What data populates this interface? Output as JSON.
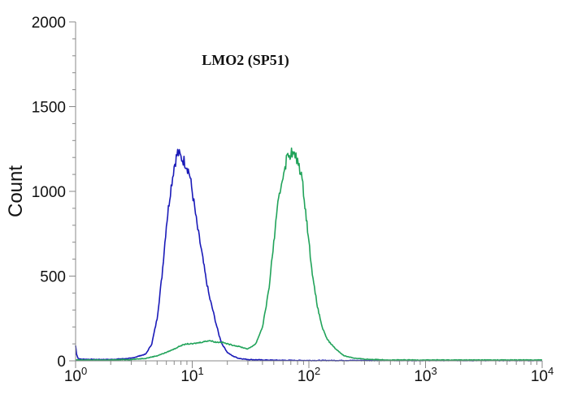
{
  "chart_data": {
    "type": "line",
    "title": "LMO2 (SP51)",
    "xlabel": "",
    "ylabel": "Count",
    "x_scale": "log",
    "xlim": [
      1,
      10000
    ],
    "ylim": [
      0,
      2000
    ],
    "grid": false,
    "y_ticks": [
      {
        "value": 0,
        "label": "0"
      },
      {
        "value": 500,
        "label": "500"
      },
      {
        "value": 1000,
        "label": "1000"
      },
      {
        "value": 1500,
        "label": "1500"
      },
      {
        "value": 2000,
        "label": "2000"
      }
    ],
    "x_ticks": [
      {
        "value": 1,
        "base": "10",
        "exp": "0"
      },
      {
        "value": 10,
        "base": "10",
        "exp": "1"
      },
      {
        "value": 100,
        "base": "10",
        "exp": "2"
      },
      {
        "value": 1000,
        "base": "10",
        "exp": "3"
      },
      {
        "value": 10000,
        "base": "10",
        "exp": "4"
      }
    ],
    "series": [
      {
        "color": "#1a1ab8",
        "x": [
          1,
          1.02,
          1.05,
          1.1,
          1.5,
          2,
          3,
          4,
          4.5,
          5,
          5.5,
          6,
          6.5,
          7,
          7.5,
          8,
          8.5,
          9,
          9.5,
          10,
          10.5,
          11,
          12,
          13,
          14,
          15,
          16,
          17,
          18,
          20,
          22,
          25,
          30,
          40,
          60,
          100,
          1000,
          10000
        ],
        "y": [
          90,
          40,
          15,
          10,
          8,
          8,
          15,
          40,
          100,
          250,
          500,
          800,
          1000,
          1150,
          1230,
          1200,
          1180,
          1150,
          1100,
          1000,
          900,
          800,
          650,
          500,
          380,
          300,
          220,
          150,
          100,
          50,
          30,
          15,
          8,
          5,
          3,
          2,
          2,
          2
        ]
      },
      {
        "color": "#21a35a",
        "x": [
          1,
          2,
          3,
          4,
          5,
          6,
          7,
          8,
          9,
          10,
          12,
          14,
          16,
          18,
          20,
          25,
          30,
          35,
          40,
          45,
          50,
          55,
          60,
          65,
          70,
          75,
          80,
          85,
          90,
          95,
          100,
          110,
          120,
          130,
          140,
          150,
          170,
          200,
          250,
          300,
          500,
          1000,
          10000
        ],
        "y": [
          5,
          5,
          8,
          15,
          30,
          50,
          70,
          90,
          100,
          100,
          110,
          120,
          110,
          110,
          100,
          85,
          70,
          100,
          200,
          400,
          700,
          950,
          1100,
          1200,
          1230,
          1210,
          1180,
          1120,
          1000,
          850,
          700,
          450,
          300,
          200,
          140,
          110,
          70,
          30,
          15,
          10,
          5,
          5,
          5
        ]
      }
    ]
  }
}
